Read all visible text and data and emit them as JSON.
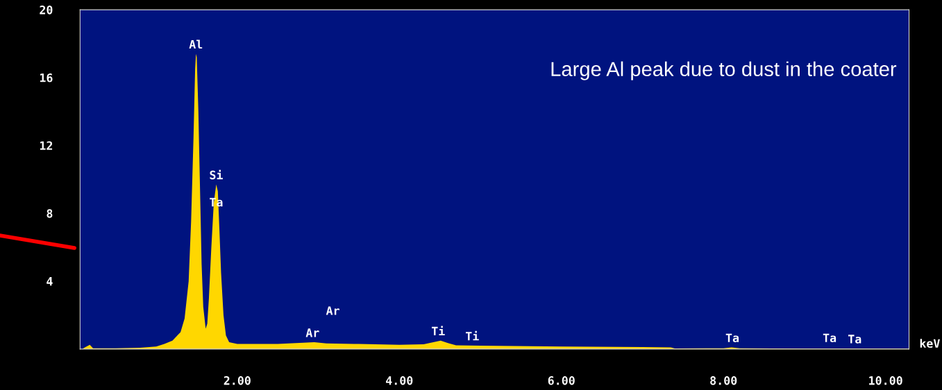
{
  "chart_data": {
    "type": "area",
    "xlabel": "keV",
    "x": [
      0.1,
      0.18,
      0.22,
      0.5,
      0.8,
      1.0,
      1.1,
      1.2,
      1.3,
      1.35,
      1.4,
      1.43,
      1.46,
      1.48,
      1.49,
      1.5,
      1.52,
      1.54,
      1.56,
      1.58,
      1.61,
      1.63,
      1.65,
      1.68,
      1.71,
      1.74,
      1.76,
      1.78,
      1.8,
      1.83,
      1.86,
      1.9,
      2.0,
      2.5,
      2.95,
      3.1,
      3.5,
      4.0,
      4.3,
      4.42,
      4.51,
      4.6,
      4.7,
      5.0,
      6.0,
      7.0,
      7.35,
      7.4,
      8.0,
      8.1,
      8.2,
      9.0,
      10.0,
      10.29
    ],
    "series": [
      {
        "color": "#ffd700",
        "values": [
          0.05,
          0.25,
          0.05,
          0.05,
          0.08,
          0.15,
          0.3,
          0.5,
          1.0,
          1.8,
          4.0,
          7.5,
          12.5,
          16.5,
          17.4,
          17.2,
          14.0,
          9.5,
          5.0,
          2.5,
          1.2,
          1.5,
          3.0,
          6.0,
          8.6,
          9.7,
          9.3,
          7.0,
          4.5,
          2.0,
          0.8,
          0.4,
          0.3,
          0.3,
          0.4,
          0.33,
          0.3,
          0.25,
          0.28,
          0.4,
          0.5,
          0.35,
          0.22,
          0.2,
          0.15,
          0.12,
          0.1,
          0.04,
          0.05,
          0.1,
          0.05,
          0.03,
          0.03,
          0.03
        ]
      }
    ],
    "xlim": [
      0.06,
      10.29
    ],
    "ylim": [
      0,
      20
    ],
    "xticks": [
      {
        "value": 2,
        "label": "2.00"
      },
      {
        "value": 4,
        "label": "4.00"
      },
      {
        "value": 6,
        "label": "6.00"
      },
      {
        "value": 8,
        "label": "8.00"
      },
      {
        "value": 10,
        "label": "10.00"
      }
    ],
    "yticks": [
      4,
      8,
      12,
      16,
      20
    ],
    "grid": false,
    "legend": false,
    "annotations": [
      "Large Al peak due to dust in the coater",
      {
        "text": "Al",
        "x": 1.49,
        "y": 17.4
      },
      {
        "text": "Si",
        "x": 1.74,
        "y": 9.7
      },
      {
        "text": "Ta",
        "x": 1.74,
        "y": 8.1
      },
      {
        "text": "Ar",
        "x": 2.93,
        "y": 0.4
      },
      "Ar",
      {
        "text": "Ti",
        "x": 4.48,
        "y": 0.5
      },
      {
        "text": "Ti",
        "x": 4.9,
        "y": 0.2
      },
      {
        "text": "Ta",
        "x": 8.11,
        "y": 0.1
      },
      {
        "text": "Ta",
        "x": 9.31,
        "y": 0.1
      },
      {
        "text": "Ta",
        "x": 9.62,
        "y": 0.03
      }
    ]
  }
}
